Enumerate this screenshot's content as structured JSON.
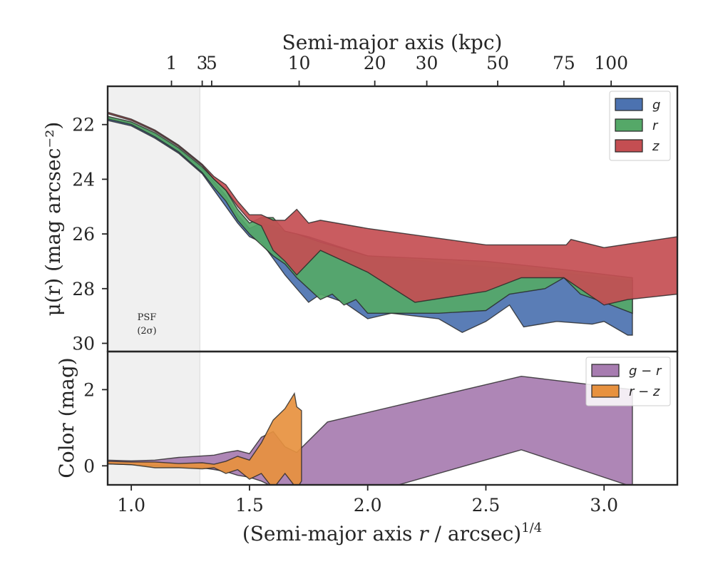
{
  "chart_data": [
    {
      "type": "area",
      "panel": "surface-brightness",
      "ylabel": "μ(r) (mag arcsec⁻²)",
      "ylim_inverted": [
        30.3,
        20.6
      ],
      "xlim": [
        0.9,
        3.31
      ],
      "yticks": [
        {
          "v": 22,
          "label": "22"
        },
        {
          "v": 24,
          "label": "24"
        },
        {
          "v": 26,
          "label": "26"
        },
        {
          "v": 28,
          "label": "28"
        },
        {
          "v": 30,
          "label": "30"
        }
      ],
      "top_axis": {
        "label": "Semi-major axis (kpc)",
        "ticks": [
          {
            "v": 1.17,
            "label": "1"
          },
          {
            "v": 1.3,
            "label": "3"
          },
          {
            "v": 1.34,
            "label": "5"
          },
          {
            "v": 1.71,
            "label": "10"
          },
          {
            "v": 2.03,
            "label": "20"
          },
          {
            "v": 2.25,
            "label": "30"
          },
          {
            "v": 2.55,
            "label": "50"
          },
          {
            "v": 2.83,
            "label": "75"
          },
          {
            "v": 3.03,
            "label": "100"
          }
        ]
      },
      "psf_region": {
        "xmax": 1.29,
        "label": "PSF",
        "sublabel": "(2σ)"
      },
      "legend": {
        "position": "upper-right",
        "entries": [
          {
            "name": "g",
            "color": "#4c72b0"
          },
          {
            "name": "r",
            "color": "#55a868"
          },
          {
            "name": "z",
            "color": "#c44e52"
          }
        ]
      },
      "series": [
        {
          "name": "g",
          "color": "#4c72b0",
          "upper": [
            [
              0.9,
              21.75
            ],
            [
              1.0,
              21.95
            ],
            [
              1.1,
              22.35
            ],
            [
              1.2,
              22.9
            ],
            [
              1.3,
              23.6
            ],
            [
              1.35,
              24.1
            ],
            [
              1.4,
              24.6
            ],
            [
              1.45,
              25.3
            ],
            [
              1.5,
              25.8
            ],
            [
              1.55,
              25.6
            ],
            [
              1.6,
              25.7
            ],
            [
              1.65,
              25.9
            ],
            [
              1.7,
              26.0
            ],
            [
              1.75,
              26.1
            ],
            [
              2.0,
              26.8
            ],
            [
              2.5,
              27.2
            ],
            [
              2.8,
              27.4
            ],
            [
              3.12,
              27.7
            ]
          ],
          "lower": [
            [
              0.9,
              21.85
            ],
            [
              1.0,
              22.05
            ],
            [
              1.1,
              22.5
            ],
            [
              1.2,
              23.05
            ],
            [
              1.3,
              23.8
            ],
            [
              1.35,
              24.4
            ],
            [
              1.4,
              25.0
            ],
            [
              1.45,
              25.6
            ],
            [
              1.5,
              26.1
            ],
            [
              1.55,
              26.3
            ],
            [
              1.6,
              26.9
            ],
            [
              1.65,
              27.5
            ],
            [
              1.7,
              28.0
            ],
            [
              1.75,
              28.5
            ],
            [
              1.8,
              28.2
            ],
            [
              1.9,
              28.5
            ],
            [
              2.0,
              29.1
            ],
            [
              2.1,
              28.9
            ],
            [
              2.3,
              29.1
            ],
            [
              2.4,
              29.6
            ],
            [
              2.5,
              29.2
            ],
            [
              2.6,
              28.6
            ],
            [
              2.66,
              29.4
            ],
            [
              2.8,
              29.2
            ],
            [
              2.95,
              29.3
            ],
            [
              3.0,
              29.2
            ],
            [
              3.1,
              29.7
            ],
            [
              3.12,
              29.7
            ]
          ]
        },
        {
          "name": "r",
          "color": "#55a868",
          "upper": [
            [
              0.9,
              21.7
            ],
            [
              1.0,
              21.9
            ],
            [
              1.1,
              22.3
            ],
            [
              1.2,
              22.85
            ],
            [
              1.3,
              23.55
            ],
            [
              1.35,
              24.0
            ],
            [
              1.4,
              24.4
            ],
            [
              1.45,
              25.1
            ],
            [
              1.5,
              25.6
            ],
            [
              1.55,
              25.4
            ],
            [
              1.6,
              25.4
            ],
            [
              1.65,
              25.9
            ],
            [
              1.7,
              26.0
            ],
            [
              1.8,
              26.3
            ],
            [
              2.0,
              26.8
            ],
            [
              2.5,
              27.0
            ],
            [
              2.83,
              27.3
            ],
            [
              3.12,
              27.6
            ]
          ],
          "lower": [
            [
              0.9,
              21.8
            ],
            [
              1.0,
              22.0
            ],
            [
              1.1,
              22.45
            ],
            [
              1.2,
              23.0
            ],
            [
              1.3,
              23.75
            ],
            [
              1.35,
              24.3
            ],
            [
              1.4,
              24.8
            ],
            [
              1.45,
              25.5
            ],
            [
              1.5,
              26.0
            ],
            [
              1.55,
              26.4
            ],
            [
              1.6,
              26.8
            ],
            [
              1.65,
              27.1
            ],
            [
              1.7,
              27.6
            ],
            [
              1.75,
              28.0
            ],
            [
              1.8,
              28.4
            ],
            [
              1.85,
              28.2
            ],
            [
              1.9,
              28.6
            ],
            [
              1.95,
              28.4
            ],
            [
              2.0,
              28.9
            ],
            [
              2.3,
              28.9
            ],
            [
              2.5,
              28.8
            ],
            [
              2.6,
              28.2
            ],
            [
              2.75,
              28.0
            ],
            [
              2.83,
              27.6
            ],
            [
              2.9,
              28.2
            ],
            [
              3.0,
              28.5
            ],
            [
              3.12,
              28.9
            ]
          ]
        },
        {
          "name": "z",
          "color": "#c44e52",
          "upper": [
            [
              0.9,
              21.55
            ],
            [
              1.0,
              21.8
            ],
            [
              1.1,
              22.2
            ],
            [
              1.2,
              22.75
            ],
            [
              1.3,
              23.45
            ],
            [
              1.35,
              23.9
            ],
            [
              1.4,
              24.2
            ],
            [
              1.45,
              24.8
            ],
            [
              1.5,
              25.3
            ],
            [
              1.55,
              25.3
            ],
            [
              1.6,
              25.5
            ],
            [
              1.65,
              25.5
            ],
            [
              1.7,
              25.1
            ],
            [
              1.75,
              25.6
            ],
            [
              1.8,
              25.5
            ],
            [
              2.0,
              25.8
            ],
            [
              2.5,
              26.4
            ],
            [
              2.84,
              26.4
            ],
            [
              2.86,
              26.2
            ],
            [
              3.0,
              26.5
            ],
            [
              3.31,
              26.1
            ]
          ],
          "lower": [
            [
              0.9,
              21.6
            ],
            [
              1.0,
              21.85
            ],
            [
              1.1,
              22.25
            ],
            [
              1.2,
              22.8
            ],
            [
              1.3,
              23.5
            ],
            [
              1.35,
              24.0
            ],
            [
              1.4,
              24.4
            ],
            [
              1.45,
              25.0
            ],
            [
              1.5,
              25.5
            ],
            [
              1.55,
              25.7
            ],
            [
              1.6,
              26.6
            ],
            [
              1.65,
              27.0
            ],
            [
              1.7,
              27.5
            ],
            [
              1.8,
              26.6
            ],
            [
              1.9,
              27.0
            ],
            [
              2.0,
              27.4
            ],
            [
              2.2,
              28.5
            ],
            [
              2.5,
              28.1
            ],
            [
              2.65,
              27.6
            ],
            [
              2.83,
              27.6
            ],
            [
              3.0,
              28.6
            ],
            [
              3.1,
              28.4
            ],
            [
              3.31,
              28.2
            ]
          ]
        }
      ]
    },
    {
      "type": "area",
      "panel": "color",
      "xlabel": "(Semi-major axis r / arcsec)^1/4",
      "ylabel": "Color (mag)",
      "ylim": [
        -0.5,
        3.0
      ],
      "xlim": [
        0.9,
        3.31
      ],
      "xticks": [
        {
          "v": 1.0,
          "label": "1.0"
        },
        {
          "v": 1.5,
          "label": "1.5"
        },
        {
          "v": 2.0,
          "label": "2.0"
        },
        {
          "v": 2.5,
          "label": "2.5"
        },
        {
          "v": 3.0,
          "label": "3.0"
        }
      ],
      "yticks": [
        {
          "v": 0,
          "label": "0"
        },
        {
          "v": 2,
          "label": "2"
        }
      ],
      "psf_region": {
        "xmax": 1.29
      },
      "legend": {
        "position": "upper-right",
        "entries": [
          {
            "name": "g − r",
            "color": "#a77cb0"
          },
          {
            "name": "r − z",
            "color": "#e7913f"
          }
        ]
      },
      "series": [
        {
          "name": "g − r",
          "color": "#a77cb0",
          "upper": [
            [
              0.9,
              0.15
            ],
            [
              1.0,
              0.13
            ],
            [
              1.1,
              0.15
            ],
            [
              1.2,
              0.22
            ],
            [
              1.3,
              0.26
            ],
            [
              1.35,
              0.28
            ],
            [
              1.4,
              0.35
            ],
            [
              1.45,
              0.4
            ],
            [
              1.5,
              0.32
            ],
            [
              1.55,
              0.75
            ],
            [
              1.6,
              0.9
            ],
            [
              1.65,
              0.5
            ],
            [
              1.7,
              0.35
            ],
            [
              1.83,
              1.15
            ],
            [
              2.65,
              2.35
            ],
            [
              3.12,
              2.0
            ]
          ],
          "lower": [
            [
              0.9,
              0.05
            ],
            [
              1.0,
              0.03
            ],
            [
              1.1,
              0.0
            ],
            [
              1.2,
              -0.03
            ],
            [
              1.3,
              -0.05
            ],
            [
              1.35,
              -0.1
            ],
            [
              1.4,
              -0.15
            ],
            [
              1.45,
              -0.25
            ],
            [
              1.5,
              -0.3
            ],
            [
              1.55,
              -0.4
            ],
            [
              1.6,
              -0.55
            ],
            [
              1.65,
              -0.55
            ],
            [
              1.7,
              -0.55
            ],
            [
              1.72,
              -0.5
            ],
            [
              2.13,
              -0.5
            ],
            [
              2.65,
              0.42
            ],
            [
              3.12,
              -0.55
            ]
          ]
        },
        {
          "name": "r − z",
          "color": "#e7913f",
          "upper": [
            [
              0.9,
              0.12
            ],
            [
              1.0,
              0.1
            ],
            [
              1.1,
              0.1
            ],
            [
              1.2,
              0.06
            ],
            [
              1.3,
              0.08
            ],
            [
              1.35,
              0.04
            ],
            [
              1.4,
              0.12
            ],
            [
              1.45,
              0.25
            ],
            [
              1.5,
              0.15
            ],
            [
              1.55,
              0.6
            ],
            [
              1.6,
              1.2
            ],
            [
              1.65,
              1.5
            ],
            [
              1.69,
              1.9
            ],
            [
              1.7,
              1.55
            ],
            [
              1.72,
              1.45
            ]
          ],
          "lower": [
            [
              0.9,
              0.05
            ],
            [
              1.0,
              0.03
            ],
            [
              1.1,
              -0.05
            ],
            [
              1.2,
              -0.05
            ],
            [
              1.3,
              -0.08
            ],
            [
              1.35,
              -0.05
            ],
            [
              1.4,
              -0.2
            ],
            [
              1.45,
              -0.1
            ],
            [
              1.5,
              -0.35
            ],
            [
              1.55,
              -0.2
            ],
            [
              1.6,
              -0.6
            ],
            [
              1.65,
              -0.2
            ],
            [
              1.7,
              -0.6
            ],
            [
              1.72,
              -0.4
            ]
          ]
        }
      ]
    }
  ]
}
